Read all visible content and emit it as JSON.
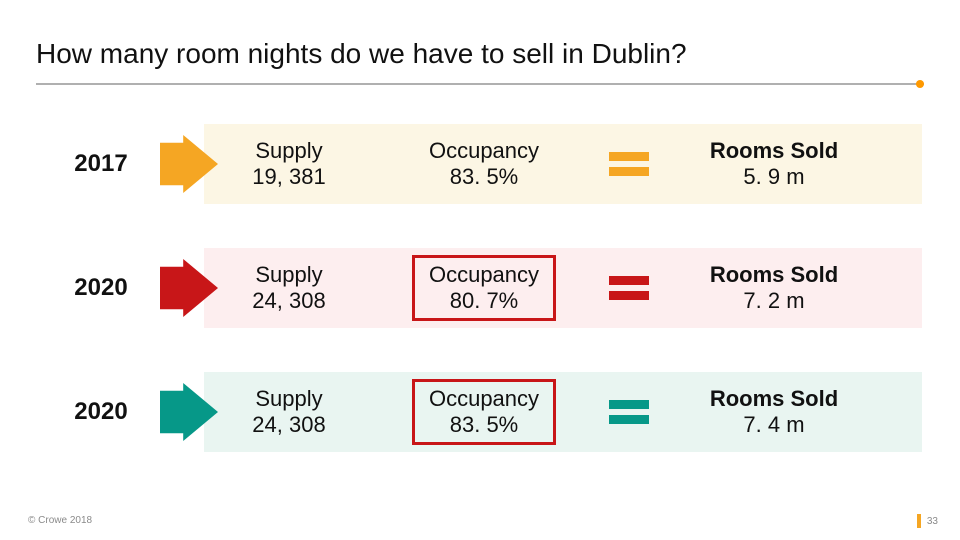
{
  "title": "How many room nights do we have to sell in Dublin?",
  "accent_dot_color": "#ff9900",
  "page_number": "33",
  "page_bar_color": "#f5a623",
  "copyright": "© Crowe 2018",
  "rows": [
    {
      "year": "2017",
      "year_bg": "#ffffff",
      "arrow_color": "#f5a623",
      "band_bg": "#fcf6e4",
      "supply_label": "Supply",
      "supply_value": "19, 381",
      "occ_label": "Occupancy",
      "occ_value": "83. 5%",
      "occ_framed": false,
      "eq_color": "#f5a623",
      "rooms_label": "Rooms Sold",
      "rooms_value": "5. 9 m"
    },
    {
      "year": "2020",
      "year_bg": "#ffffff",
      "arrow_color": "#c81618",
      "band_bg": "#fdeeef",
      "supply_label": "Supply",
      "supply_value": "24, 308",
      "occ_label": "Occupancy",
      "occ_value": "80. 7%",
      "occ_framed": true,
      "eq_color": "#c81618",
      "rooms_label": "Rooms Sold",
      "rooms_value": "7. 2 m"
    },
    {
      "year": "2020",
      "year_bg": "#ffffff",
      "arrow_color": "#069888",
      "band_bg": "#e9f5f1",
      "supply_label": "Supply",
      "supply_value": "24, 308",
      "occ_label": "Occupancy",
      "occ_value": "83. 5%",
      "occ_framed": true,
      "eq_color": "#069888",
      "rooms_label": "Rooms Sold",
      "rooms_value": "7. 4 m"
    }
  ]
}
